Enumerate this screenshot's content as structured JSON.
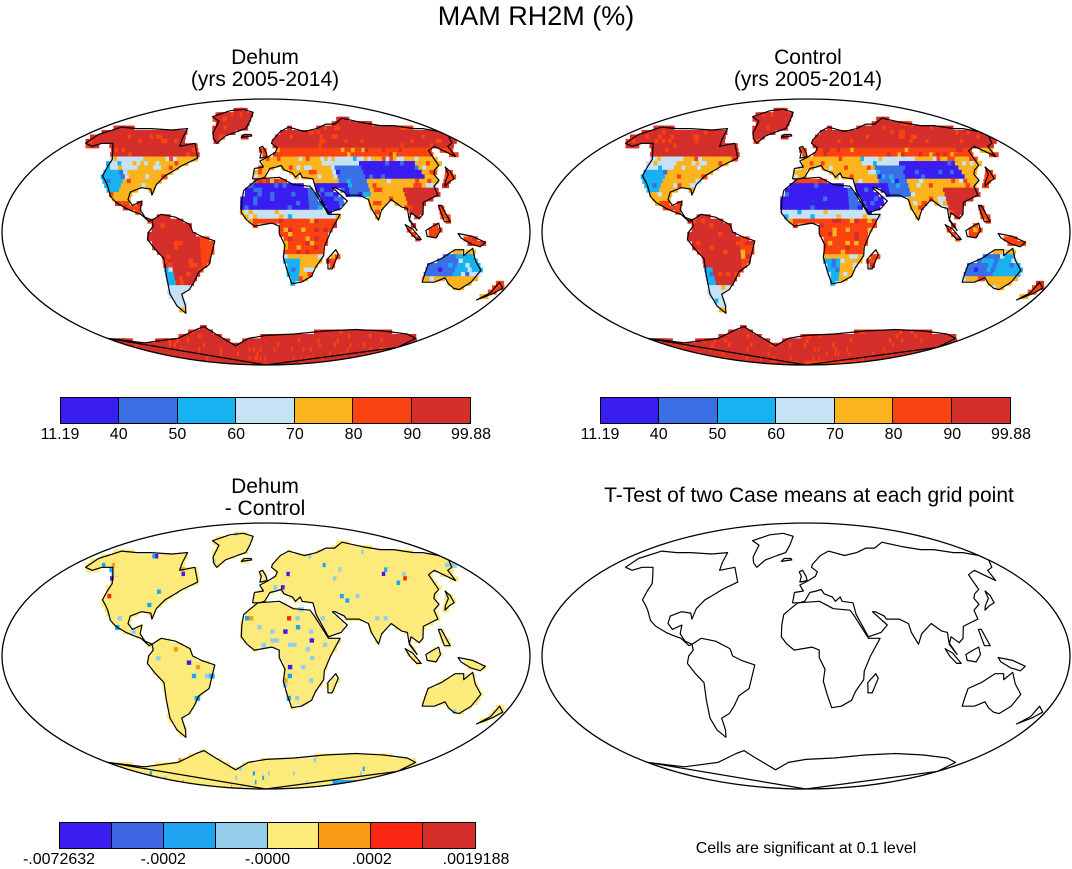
{
  "title": "MAM RH2M (%)",
  "panels": {
    "dehum": {
      "title_line1": "Dehum",
      "title_line2": "(yrs 2005-2014)"
    },
    "control": {
      "title_line1": "Control",
      "title_line2": "(yrs 2005-2014)"
    },
    "diff": {
      "title_line1": "Dehum",
      "title_line2": "- Control"
    },
    "ttest": {
      "title": "T-Test of two Case means at each grid point",
      "note": "Cells are significant at 0.1 level"
    }
  },
  "colorbars": {
    "rh": {
      "labels": [
        "11.19",
        "40",
        "50",
        "60",
        "70",
        "80",
        "90",
        "99.88"
      ],
      "colors": [
        "#3a1df0",
        "#3b6fe6",
        "#19b2f0",
        "#c5e3f5",
        "#fbb41d",
        "#fb4312",
        "#d42f2a"
      ]
    },
    "diff": {
      "labels": [
        "-.0072632",
        "-.0002",
        "-.0000",
        ".0002",
        ".0019188"
      ],
      "label_positions": [
        0,
        2,
        4,
        6,
        8
      ],
      "colors": [
        "#3a1df0",
        "#3f67e4",
        "#1fa3f0",
        "#96cdea",
        "#fceb7a",
        "#fb9c18",
        "#fb2712",
        "#d42f2a"
      ]
    }
  }
}
